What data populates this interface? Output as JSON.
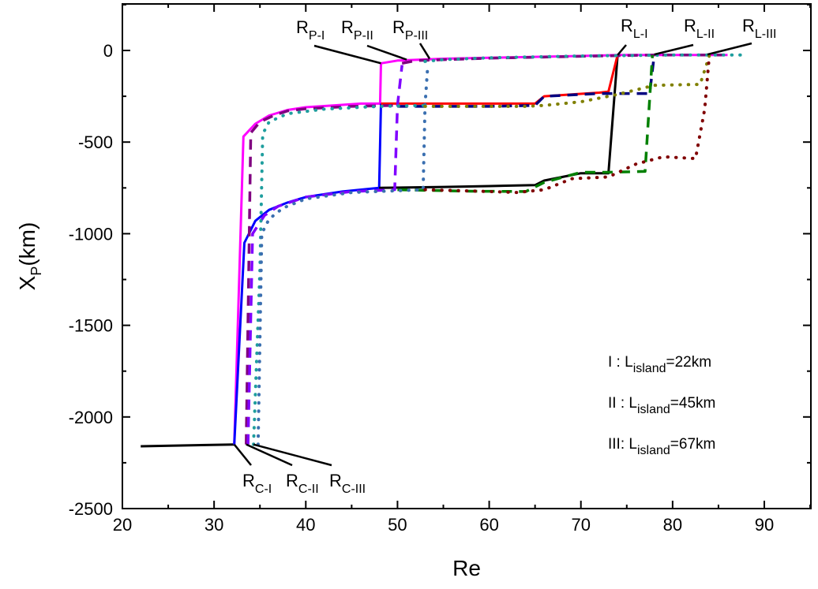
{
  "chart_data": {
    "type": "line",
    "title": "",
    "xlabel": "Re",
    "ylabel": {
      "main": "X",
      "sub": "P",
      "rest": "(km)"
    },
    "xlim": [
      20,
      95
    ],
    "ylim": [
      -2500,
      250
    ],
    "xticks": [
      20,
      30,
      40,
      50,
      60,
      70,
      80,
      90
    ],
    "yticks": [
      0,
      -500,
      -1000,
      -1500,
      -2000,
      -2500
    ],
    "grid": false,
    "legend_placement": "bottom-right",
    "legend": [
      {
        "prefix": "I  : L",
        "sub": "island",
        "suffix": "=22km"
      },
      {
        "prefix": "II : L",
        "sub": "island",
        "suffix": "=45km"
      },
      {
        "prefix": "III: L",
        "sub": "island",
        "suffix": "=67km"
      }
    ],
    "annotations": [
      {
        "main": "R",
        "sub": "P-I",
        "target": [
          48.2,
          -70
        ]
      },
      {
        "main": "R",
        "sub": "P-II",
        "target": [
          51,
          -50
        ]
      },
      {
        "main": "R",
        "sub": "P-III",
        "target": [
          53.5,
          -45
        ]
      },
      {
        "main": "R",
        "sub": "L-I",
        "target": [
          74,
          -25
        ]
      },
      {
        "main": "R",
        "sub": "L-II",
        "target": [
          78,
          -22
        ]
      },
      {
        "main": "R",
        "sub": "L-III",
        "target": [
          83.8,
          -22
        ]
      },
      {
        "main": "R",
        "sub": "C-I",
        "target": [
          32.2,
          -2150
        ]
      },
      {
        "main": "R",
        "sub": "C-II",
        "target": [
          33.5,
          -2150
        ]
      },
      {
        "main": "R",
        "sub": "C-III",
        "target": [
          34.3,
          -2150
        ]
      }
    ],
    "series": [
      {
        "group": "I",
        "color": "#000000",
        "style": "solid",
        "x": [
          22,
          32.2
        ],
        "y": [
          -2160,
          -2150
        ]
      },
      {
        "group": "I",
        "color": "#ff00ff",
        "style": "solid",
        "x": [
          32.2,
          33.2,
          34.5,
          36,
          38,
          40,
          43,
          46,
          48.1,
          48.2,
          50,
          55,
          60,
          65,
          70,
          74,
          80,
          86
        ],
        "y": [
          -2150,
          -470,
          -400,
          -355,
          -325,
          -310,
          -300,
          -290,
          -290,
          -70,
          -55,
          -45,
          -40,
          -35,
          -30,
          -25,
          -25,
          -25
        ]
      },
      {
        "group": "I",
        "color": "#0000ff",
        "style": "solid",
        "x": [
          32.2,
          33.3,
          34.5,
          36,
          38,
          40,
          44,
          48,
          48.2
        ],
        "y": [
          -2150,
          -1050,
          -930,
          -870,
          -830,
          -800,
          -770,
          -750,
          -290
        ]
      },
      {
        "group": "I",
        "color": "#000000",
        "style": "solid",
        "x": [
          48,
          55,
          60,
          65,
          66,
          68,
          70,
          73,
          74
        ],
        "y": [
          -750,
          -745,
          -740,
          -735,
          -710,
          -690,
          -670,
          -670,
          -25
        ]
      },
      {
        "group": "I",
        "color": "#ff0000",
        "style": "solid",
        "x": [
          48.2,
          55,
          60,
          65,
          66,
          69,
          72,
          73,
          74
        ],
        "y": [
          -290,
          -290,
          -290,
          -290,
          -250,
          -240,
          -230,
          -225,
          -25
        ]
      },
      {
        "group": "II",
        "color": "#800080",
        "style": "dashed",
        "x": [
          33.5,
          34,
          35,
          36.5,
          38,
          40,
          45,
          49.5
        ],
        "y": [
          -2150,
          -450,
          -390,
          -355,
          -330,
          -318,
          -305,
          -300
        ]
      },
      {
        "group": "II",
        "color": "#800080",
        "style": "dashed",
        "x": [
          50.5,
          52,
          60,
          70,
          78,
          86
        ],
        "y": [
          -70,
          -55,
          -42,
          -32,
          -25,
          -25
        ]
      },
      {
        "group": "II",
        "color": "#8000ff",
        "style": "dashed",
        "x": [
          33.7,
          34.2,
          35.5,
          37,
          40,
          45,
          49.7,
          50,
          50.5
        ],
        "y": [
          -2150,
          -1000,
          -900,
          -850,
          -800,
          -770,
          -760,
          -300,
          -80
        ]
      },
      {
        "group": "II",
        "color": "#000080",
        "style": "dashed",
        "x": [
          50,
          60,
          65,
          66,
          70,
          72,
          77.5,
          78
        ],
        "y": [
          -305,
          -305,
          -300,
          -250,
          -240,
          -235,
          -235,
          -25
        ]
      },
      {
        "group": "II",
        "color": "#008000",
        "style": "dashed",
        "x": [
          50,
          58,
          64,
          66,
          70,
          73,
          77,
          77.8
        ],
        "y": [
          -760,
          -768,
          -770,
          -720,
          -665,
          -665,
          -660,
          -25
        ]
      },
      {
        "group": "III",
        "color": "#1f9e9e",
        "style": "dotted",
        "x": [
          34.3,
          35,
          35.3,
          36,
          38,
          42,
          48,
          53
        ],
        "y": [
          -2150,
          -1200,
          -456,
          -390,
          -345,
          -320,
          -305,
          -300
        ]
      },
      {
        "group": "III",
        "color": "#1f9e9e",
        "style": "dotted",
        "x": [
          53,
          55,
          60,
          70,
          80,
          88
        ],
        "y": [
          -60,
          -50,
          -40,
          -30,
          -25,
          -25
        ]
      },
      {
        "group": "III",
        "color": "#3a6fb0",
        "style": "dotted",
        "x": [
          34.8,
          35.2,
          36,
          37.5,
          40,
          45,
          52.8,
          53,
          53.3
        ],
        "y": [
          -2150,
          -1000,
          -920,
          -860,
          -810,
          -775,
          -760,
          -300,
          -80
        ]
      },
      {
        "group": "III",
        "color": "#808000",
        "style": "dotted",
        "x": [
          53,
          60,
          64,
          66,
          70,
          74,
          78,
          83,
          84
        ],
        "y": [
          -305,
          -305,
          -305,
          -300,
          -280,
          -240,
          -190,
          -185,
          -30
        ]
      },
      {
        "group": "III",
        "color": "#800000",
        "style": "dotted",
        "x": [
          53,
          60,
          63,
          66,
          69,
          73,
          76,
          79,
          82.5,
          83.5,
          84
        ],
        "y": [
          -760,
          -770,
          -775,
          -760,
          -700,
          -690,
          -620,
          -580,
          -590,
          -320,
          -30
        ]
      }
    ]
  }
}
